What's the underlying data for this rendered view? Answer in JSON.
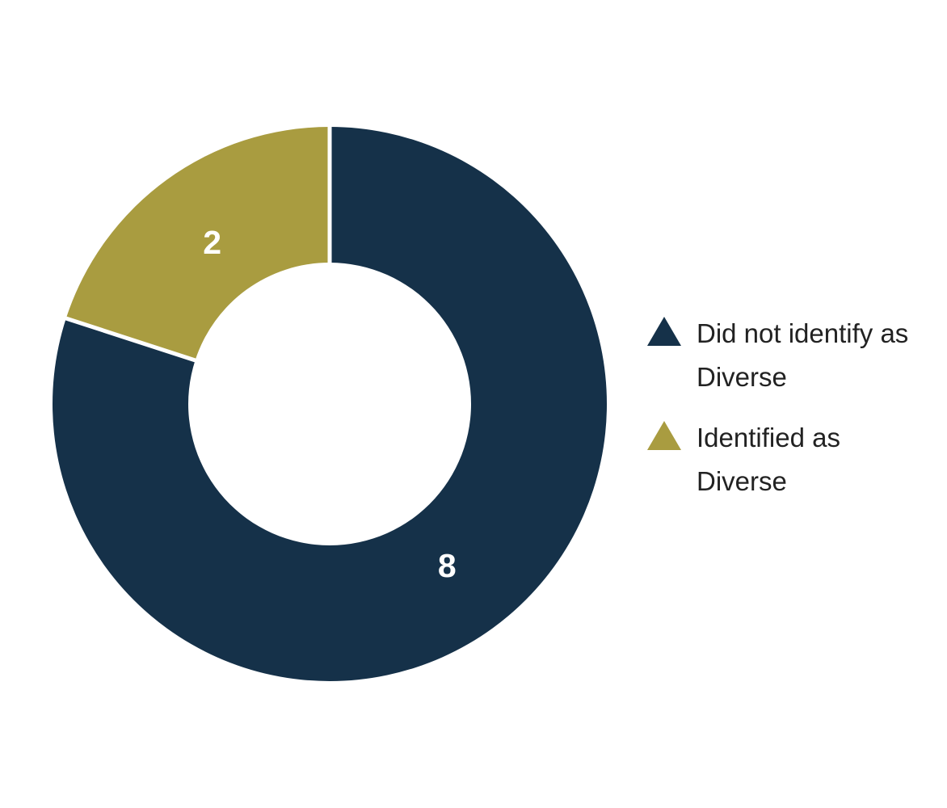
{
  "chart_data": {
    "type": "pie",
    "subtype": "donut",
    "title": "",
    "categories": [
      "Did not identify as Diverse",
      "Identified as Diverse"
    ],
    "values": [
      8,
      2
    ],
    "colors": [
      "#153149",
      "#A99C40"
    ],
    "slice_label_color": "#ffffff",
    "start_angle_deg": 0,
    "direction": "clockwise",
    "inner_radius_ratio": 0.51,
    "separator_color": "#ffffff",
    "background_color": "#ffffff",
    "legend_position": "right",
    "legend_marker": "triangle"
  },
  "legend": {
    "items": [
      {
        "label": "Did not identify as Diverse",
        "color": "#153149",
        "marker": "triangle-icon"
      },
      {
        "label": "Identified as Diverse",
        "color": "#A99C40",
        "marker": "triangle-icon"
      }
    ]
  }
}
